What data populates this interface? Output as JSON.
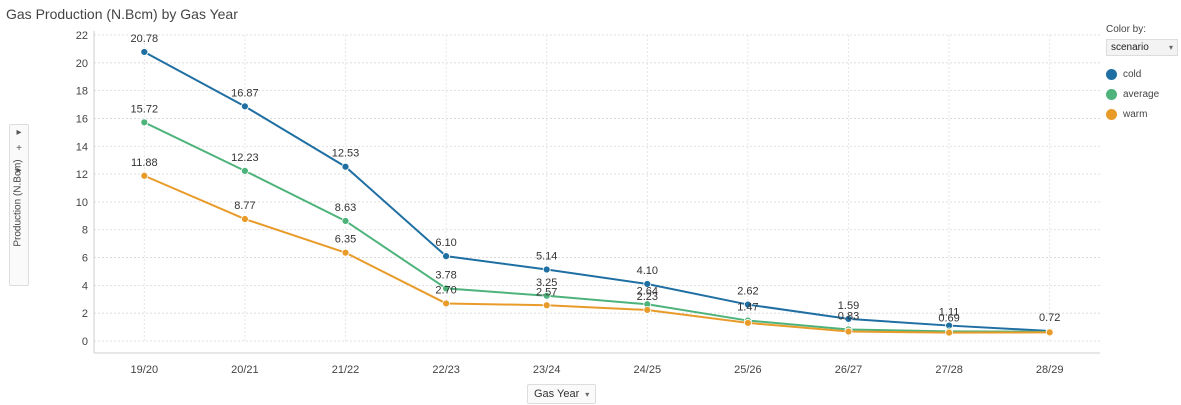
{
  "chart_data": {
    "type": "line",
    "title": "Gas Production (N.Bcm) by Gas Year",
    "xlabel": "Gas Year",
    "ylabel": "Production (N.Bcm)",
    "ylim": [
      0,
      22
    ],
    "yticks": [
      0,
      2,
      4,
      6,
      8,
      10,
      12,
      14,
      16,
      18,
      20,
      22
    ],
    "grid": true,
    "legend_placement": "right",
    "x": [
      "19/20",
      "20/21",
      "21/22",
      "22/23",
      "23/24",
      "24/25",
      "25/26",
      "26/27",
      "27/28",
      "28/29"
    ],
    "series": [
      {
        "name": "cold",
        "color": "#1f6fa3",
        "values": [
          20.78,
          16.87,
          12.53,
          6.1,
          5.14,
          4.1,
          2.62,
          1.59,
          1.11,
          0.72
        ],
        "labels": [
          "20.78",
          "16.87",
          "12.53",
          "6.10",
          "5.14",
          "4.10",
          "2.62",
          "1.59",
          "1.11",
          "0.72"
        ]
      },
      {
        "name": "average",
        "color": "#4db37a",
        "values": [
          15.72,
          12.23,
          8.63,
          3.78,
          3.25,
          2.64,
          1.47,
          0.83,
          0.69,
          0.66
        ],
        "labels": [
          "15.72",
          "12.23",
          "8.63",
          "3.78",
          "3.25",
          "2.64",
          "1.47",
          "0.83",
          "0.69",
          ""
        ]
      },
      {
        "name": "warm",
        "color": "#e99b2a",
        "values": [
          11.88,
          8.77,
          6.35,
          2.7,
          2.57,
          2.23,
          1.3,
          0.68,
          0.6,
          0.62
        ],
        "labels": [
          "11.88",
          "8.77",
          "6.35",
          "2.70",
          "2.57",
          "2.23",
          "",
          "",
          "",
          ""
        ]
      }
    ]
  },
  "legend": {
    "title": "Color by:",
    "selected": "scenario"
  },
  "icons": {
    "dropdown": "▾",
    "side_arrow": "▸",
    "plus": "+"
  }
}
